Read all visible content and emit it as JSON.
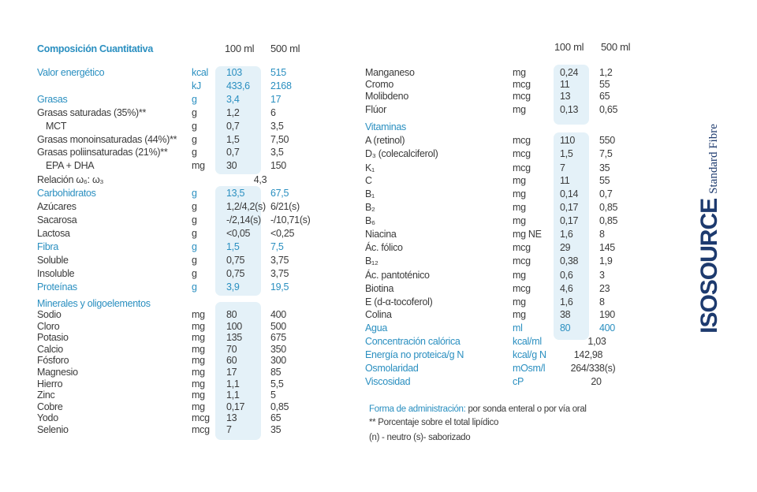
{
  "left": {
    "header": {
      "title": "Composición Cuantitativa",
      "col1": "100 ml",
      "col2": "500 ml"
    },
    "rows": [
      {
        "name": "Valor energético",
        "unit": "kcal",
        "v100": "103",
        "v500": "515"
      },
      {
        "unit": "kJ",
        "v100": "433,6",
        "v500": "2168"
      },
      {
        "name": "Grasas",
        "unit": "g",
        "v100": "3,4",
        "v500": "17"
      },
      {
        "name": "Grasas saturadas (35%)**",
        "unit": "g",
        "v100": "1,2",
        "v500": "6"
      },
      {
        "name": "MCT",
        "unit": "g",
        "v100": "0,7",
        "v500": "3,5"
      },
      {
        "name": "Grasas monoinsaturadas (44%)**",
        "unit": "g",
        "v100": "1,5",
        "v500": "7,50"
      },
      {
        "name": "Grasas poliinsaturadas (21%)**",
        "unit": "g",
        "v100": "0,7",
        "v500": "3,5"
      },
      {
        "name": "EPA + DHA",
        "unit": "mg",
        "v100": "30",
        "v500": "150"
      },
      {
        "name": "Relación ω₆: ω₃",
        "v": "4,3"
      },
      {
        "name": "Carbohidratos",
        "unit": "g",
        "v100": "13,5",
        "v500": "67,5"
      },
      {
        "name": "Azúcares",
        "unit": "g",
        "v100": "1,2/4,2(s)",
        "v500": "6/21(s)"
      },
      {
        "name": "Sacarosa",
        "unit": "g",
        "v100": "-/2,14(s)",
        "v500": "-/10,71(s)"
      },
      {
        "name": "Lactosa",
        "unit": "g",
        "v100": "<0,05",
        "v500": "<0,25"
      },
      {
        "name": "Fibra",
        "unit": "g",
        "v100": "1,5",
        "v500": "7,5"
      },
      {
        "name": "Soluble",
        "unit": "g",
        "v100": "0,75",
        "v500": "3,75"
      },
      {
        "name": "Insoluble",
        "unit": "g",
        "v100": "0,75",
        "v500": "3,75"
      },
      {
        "name": "Proteínas",
        "unit": "g",
        "v100": "3,9",
        "v500": "19,5"
      },
      {
        "name": "Minerales y oligoelementos"
      },
      {
        "name": "Sodio",
        "unit": "mg",
        "v100": "80",
        "v500": "400"
      },
      {
        "name": "Cloro",
        "unit": "mg",
        "v100": "100",
        "v500": "500"
      },
      {
        "name": "Potasio",
        "unit": "mg",
        "v100": "135",
        "v500": "675"
      },
      {
        "name": "Calcio",
        "unit": "mg",
        "v100": "70",
        "v500": "350"
      },
      {
        "name": "Fósforo",
        "unit": "mg",
        "v100": "60",
        "v500": "300"
      },
      {
        "name": "Magnesio",
        "unit": "mg",
        "v100": "17",
        "v500": "85"
      },
      {
        "name": "Hierro",
        "unit": "mg",
        "v100": "1,1",
        "v500": "5,5"
      },
      {
        "name": "Zinc",
        "unit": "mg",
        "v100": "1,1",
        "v500": "5"
      },
      {
        "name": "Cobre",
        "unit": "mg",
        "v100": "0,17",
        "v500": "0,85"
      },
      {
        "name": "Yodo",
        "unit": "mcg",
        "v100": "13",
        "v500": "65"
      },
      {
        "name": "Selenio",
        "unit": "mcg",
        "v100": "7",
        "v500": "35"
      }
    ]
  },
  "right": {
    "header": {
      "col1": "100 ml",
      "col2": "500 ml"
    },
    "rows": [
      {
        "name": "Manganeso",
        "unit": "mg",
        "v100": "0,24",
        "v500": "1,2"
      },
      {
        "name": "Cromo",
        "unit": "mcg",
        "v100": "11",
        "v500": "55"
      },
      {
        "name": "Molibdeno",
        "unit": "mcg",
        "v100": "13",
        "v500": "65"
      },
      {
        "name": "Flúor",
        "unit": "mg",
        "v100": "0,13",
        "v500": "0,65"
      },
      {
        "name": "Vitaminas"
      },
      {
        "name": "A (retinol)",
        "unit": "mcg",
        "v100": "110",
        "v500": "550"
      },
      {
        "name": "D₃ (colecalciferol)",
        "unit": "mcg",
        "v100": "1,5",
        "v500": "7,5"
      },
      {
        "name": "K₁",
        "unit": "mcg",
        "v100": "7",
        "v500": "35"
      },
      {
        "name": "C",
        "unit": "mg",
        "v100": "11",
        "v500": "55"
      },
      {
        "name": "B₁",
        "unit": "mg",
        "v100": "0,14",
        "v500": "0,7"
      },
      {
        "name": "B₂",
        "unit": "mg",
        "v100": "0,17",
        "v500": "0,85"
      },
      {
        "name": "B₆",
        "unit": "mg",
        "v100": "0,17",
        "v500": "0,85"
      },
      {
        "name": "Niacina",
        "unit": "mg NE",
        "v100": "1,6",
        "v500": "8"
      },
      {
        "name": "Ác. fólico",
        "unit": "mcg",
        "v100": "29",
        "v500": "145"
      },
      {
        "name": "B₁₂",
        "unit": "mcg",
        "v100": "0,38",
        "v500": "1,9"
      },
      {
        "name": "Ác. pantoténico",
        "unit": "mg",
        "v100": "0,6",
        "v500": "3"
      },
      {
        "name": "Biotina",
        "unit": "mcg",
        "v100": "4,6",
        "v500": "23"
      },
      {
        "name": "E (d-α-tocoferol)",
        "unit": "mg",
        "v100": "1,6",
        "v500": "8"
      },
      {
        "name": "Colina",
        "unit": "mg",
        "v100": "38",
        "v500": "190"
      },
      {
        "name": "Agua",
        "unit": "ml",
        "v100": "80",
        "v500": "400"
      },
      {
        "name": "Concentración calórica",
        "unit": "kcal/ml",
        "v": "1,03"
      },
      {
        "name": "Energía no proteica/g N",
        "unit": "kcal/g N",
        "v": "142,98"
      },
      {
        "name": "Osmolaridad",
        "unit": "mOsm/l",
        "v": "264/338(s)"
      },
      {
        "name": "Viscosidad",
        "unit": "cP",
        "v": "20"
      }
    ]
  },
  "notes": {
    "admin_label": "Forma de administración:",
    "admin_text": "por sonda enteral o por vía oral",
    "lipid": "** Porcentaje sobre el total lipídico",
    "legend": "(n) - neutro (s)- saborizado"
  },
  "logo": {
    "brand": "ISOSOURCE",
    "product": "Standard Fibre"
  }
}
